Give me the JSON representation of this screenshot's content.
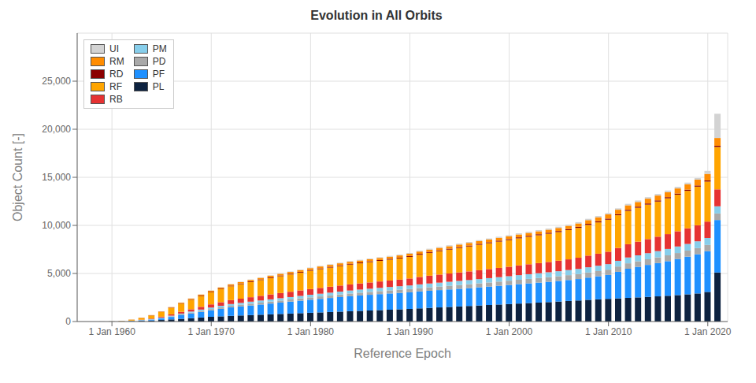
{
  "chart_data": {
    "type": "bar",
    "stacked": true,
    "title": "Evolution in All Orbits",
    "xlabel": "Reference Epoch",
    "ylabel": "Object Count [-]",
    "x": [
      1957,
      1958,
      1959,
      1960,
      1961,
      1962,
      1963,
      1964,
      1965,
      1966,
      1967,
      1968,
      1969,
      1970,
      1971,
      1972,
      1973,
      1974,
      1975,
      1976,
      1977,
      1978,
      1979,
      1980,
      1981,
      1982,
      1983,
      1984,
      1985,
      1986,
      1987,
      1988,
      1989,
      1990,
      1991,
      1992,
      1993,
      1994,
      1995,
      1996,
      1997,
      1998,
      1999,
      2000,
      2001,
      2002,
      2003,
      2004,
      2005,
      2006,
      2007,
      2008,
      2009,
      2010,
      2011,
      2012,
      2013,
      2014,
      2015,
      2016,
      2017,
      2018,
      2019,
      2020,
      2021
    ],
    "series": [
      {
        "name": "PL",
        "color": "#0d2240",
        "values": [
          0,
          1,
          3,
          8,
          15,
          40,
          70,
          110,
          160,
          220,
          280,
          350,
          420,
          490,
          540,
          590,
          630,
          670,
          710,
          750,
          790,
          830,
          870,
          910,
          950,
          990,
          1030,
          1070,
          1110,
          1150,
          1190,
          1230,
          1270,
          1310,
          1370,
          1420,
          1470,
          1520,
          1570,
          1620,
          1670,
          1720,
          1770,
          1820,
          1870,
          1920,
          1970,
          2020,
          2080,
          2140,
          2190,
          2260,
          2310,
          2360,
          2410,
          2460,
          2510,
          2560,
          2620,
          2680,
          2750,
          2830,
          2920,
          3080,
          5100
        ]
      },
      {
        "name": "PF",
        "color": "#1e90ff",
        "values": [
          0,
          0,
          1,
          4,
          8,
          25,
          55,
          90,
          160,
          260,
          380,
          480,
          580,
          680,
          780,
          880,
          940,
          1000,
          1060,
          1120,
          1180,
          1240,
          1300,
          1360,
          1410,
          1460,
          1510,
          1560,
          1600,
          1630,
          1660,
          1690,
          1710,
          1730,
          1760,
          1780,
          1800,
          1820,
          1840,
          1860,
          1890,
          1920,
          1950,
          1980,
          2020,
          2050,
          2080,
          2110,
          2140,
          2180,
          2230,
          2310,
          2400,
          2490,
          2760,
          3030,
          3180,
          3330,
          3460,
          3600,
          3760,
          3920,
          4080,
          4240,
          5460
        ]
      },
      {
        "name": "PD",
        "color": "#a9a9a9",
        "values": [
          0,
          0,
          0,
          1,
          4,
          8,
          16,
          25,
          42,
          60,
          78,
          96,
          114,
          132,
          150,
          165,
          175,
          185,
          195,
          205,
          215,
          225,
          235,
          245,
          255,
          265,
          275,
          285,
          295,
          305,
          315,
          325,
          335,
          345,
          355,
          365,
          375,
          385,
          395,
          405,
          415,
          425,
          435,
          445,
          455,
          465,
          475,
          485,
          495,
          505,
          515,
          525,
          535,
          545,
          555,
          565,
          575,
          585,
          595,
          605,
          615,
          625,
          635,
          645,
          680
        ]
      },
      {
        "name": "PM",
        "color": "#87ceeb",
        "values": [
          0,
          0,
          0,
          2,
          6,
          12,
          20,
          35,
          52,
          70,
          90,
          112,
          130,
          150,
          170,
          185,
          198,
          210,
          220,
          230,
          240,
          250,
          260,
          270,
          280,
          290,
          300,
          310,
          320,
          330,
          340,
          350,
          360,
          370,
          380,
          390,
          400,
          410,
          420,
          430,
          440,
          450,
          460,
          470,
          480,
          490,
          500,
          510,
          520,
          530,
          540,
          550,
          560,
          575,
          590,
          605,
          620,
          635,
          650,
          665,
          680,
          695,
          710,
          725,
          745
        ]
      },
      {
        "name": "RB",
        "color": "#e63232",
        "values": [
          0,
          0,
          1,
          2,
          6,
          15,
          32,
          52,
          88,
          132,
          180,
          238,
          285,
          332,
          370,
          408,
          436,
          464,
          492,
          517,
          537,
          552,
          572,
          592,
          602,
          617,
          627,
          637,
          642,
          652,
          662,
          672,
          682,
          722,
          772,
          812,
          842,
          862,
          882,
          902,
          922,
          942,
          962,
          982,
          1012,
          1032,
          1052,
          1072,
          1092,
          1112,
          1162,
          1212,
          1252,
          1292,
          1342,
          1382,
          1422,
          1462,
          1502,
          1542,
          1582,
          1622,
          1662,
          1702,
          1762
        ]
      },
      {
        "name": "RF",
        "color": "#ffa500",
        "values": [
          0,
          0,
          2,
          8,
          25,
          90,
          180,
          315,
          495,
          675,
          855,
          990,
          1125,
          1260,
          1350,
          1440,
          1512,
          1575,
          1638,
          1701,
          1755,
          1800,
          1854,
          1908,
          1953,
          1989,
          2025,
          2061,
          2088,
          2115,
          2142,
          2169,
          2205,
          2250,
          2313,
          2376,
          2430,
          2484,
          2538,
          2592,
          2646,
          2691,
          2736,
          2772,
          2817,
          2853,
          2898,
          2934,
          2979,
          3042,
          3105,
          3195,
          3258,
          3330,
          3402,
          3465,
          3528,
          3591,
          3654,
          3726,
          3807,
          3906,
          4023,
          4167,
          4410
        ]
      },
      {
        "name": "RD",
        "color": "#8b0000",
        "values": [
          0,
          0,
          0,
          1,
          2,
          6,
          12,
          18,
          26,
          34,
          40,
          47,
          52,
          57,
          61,
          65,
          68,
          70,
          72,
          74,
          76,
          78,
          79,
          81,
          83,
          84,
          86,
          87,
          88,
          89,
          90,
          91,
          91,
          92,
          93,
          94,
          95,
          96,
          97,
          97,
          98,
          99,
          100,
          101,
          102,
          103,
          104,
          105,
          106,
          107,
          108,
          109,
          110,
          111,
          112,
          113,
          114,
          115,
          116,
          117,
          118,
          119,
          120,
          121,
          124
        ]
      },
      {
        "name": "RM",
        "color": "#ff8c00",
        "values": [
          0,
          0,
          1,
          2,
          4,
          8,
          15,
          24,
          36,
          50,
          63,
          79,
          94,
          108,
          121,
          135,
          146,
          155,
          162,
          169,
          176,
          180,
          185,
          189,
          194,
          198,
          203,
          207,
          211,
          214,
          218,
          221,
          225,
          230,
          236,
          243,
          250,
          257,
          265,
          272,
          279,
          286,
          293,
          297,
          302,
          306,
          311,
          315,
          324,
          338,
          356,
          387,
          419,
          441,
          459,
          473,
          486,
          500,
          509,
          518,
          531,
          558,
          603,
          675,
          810
        ]
      },
      {
        "name": "UI",
        "color": "#d3d3d3",
        "values": [
          0,
          0,
          0,
          0,
          1,
          2,
          2,
          4,
          7,
          10,
          14,
          18,
          22,
          27,
          31,
          36,
          40,
          43,
          46,
          49,
          51,
          54,
          57,
          59,
          62,
          65,
          68,
          70,
          73,
          76,
          78,
          81,
          84,
          86,
          89,
          92,
          95,
          97,
          100,
          103,
          105,
          108,
          111,
          113,
          116,
          119,
          122,
          124,
          127,
          130,
          132,
          135,
          138,
          140,
          144,
          149,
          153,
          158,
          162,
          167,
          171,
          176,
          180,
          315,
          2520
        ]
      }
    ],
    "xlim": [
      1956.5,
      2022.0
    ],
    "xticks": [
      {
        "value": 1960,
        "label": "1 Jan 1960"
      },
      {
        "value": 1970,
        "label": "1 Jan 1970"
      },
      {
        "value": 1980,
        "label": "1 Jan 1980"
      },
      {
        "value": 1990,
        "label": "1 Jan 1990"
      },
      {
        "value": 2000,
        "label": "1 Jan 2000"
      },
      {
        "value": 2010,
        "label": "1 Jan 2010"
      },
      {
        "value": 2020,
        "label": "1 Jan 2020"
      }
    ],
    "ylim": [
      0,
      30000
    ],
    "yticks": [
      0,
      {
        "value": 5000,
        "label": "5,000"
      },
      {
        "value": 10000,
        "label": "10,000"
      },
      {
        "value": 15000,
        "label": "15,000"
      },
      {
        "value": 20000,
        "label": "20,000"
      },
      {
        "value": 25000,
        "label": "25,000"
      }
    ],
    "grid": true,
    "legend": "upper left"
  }
}
